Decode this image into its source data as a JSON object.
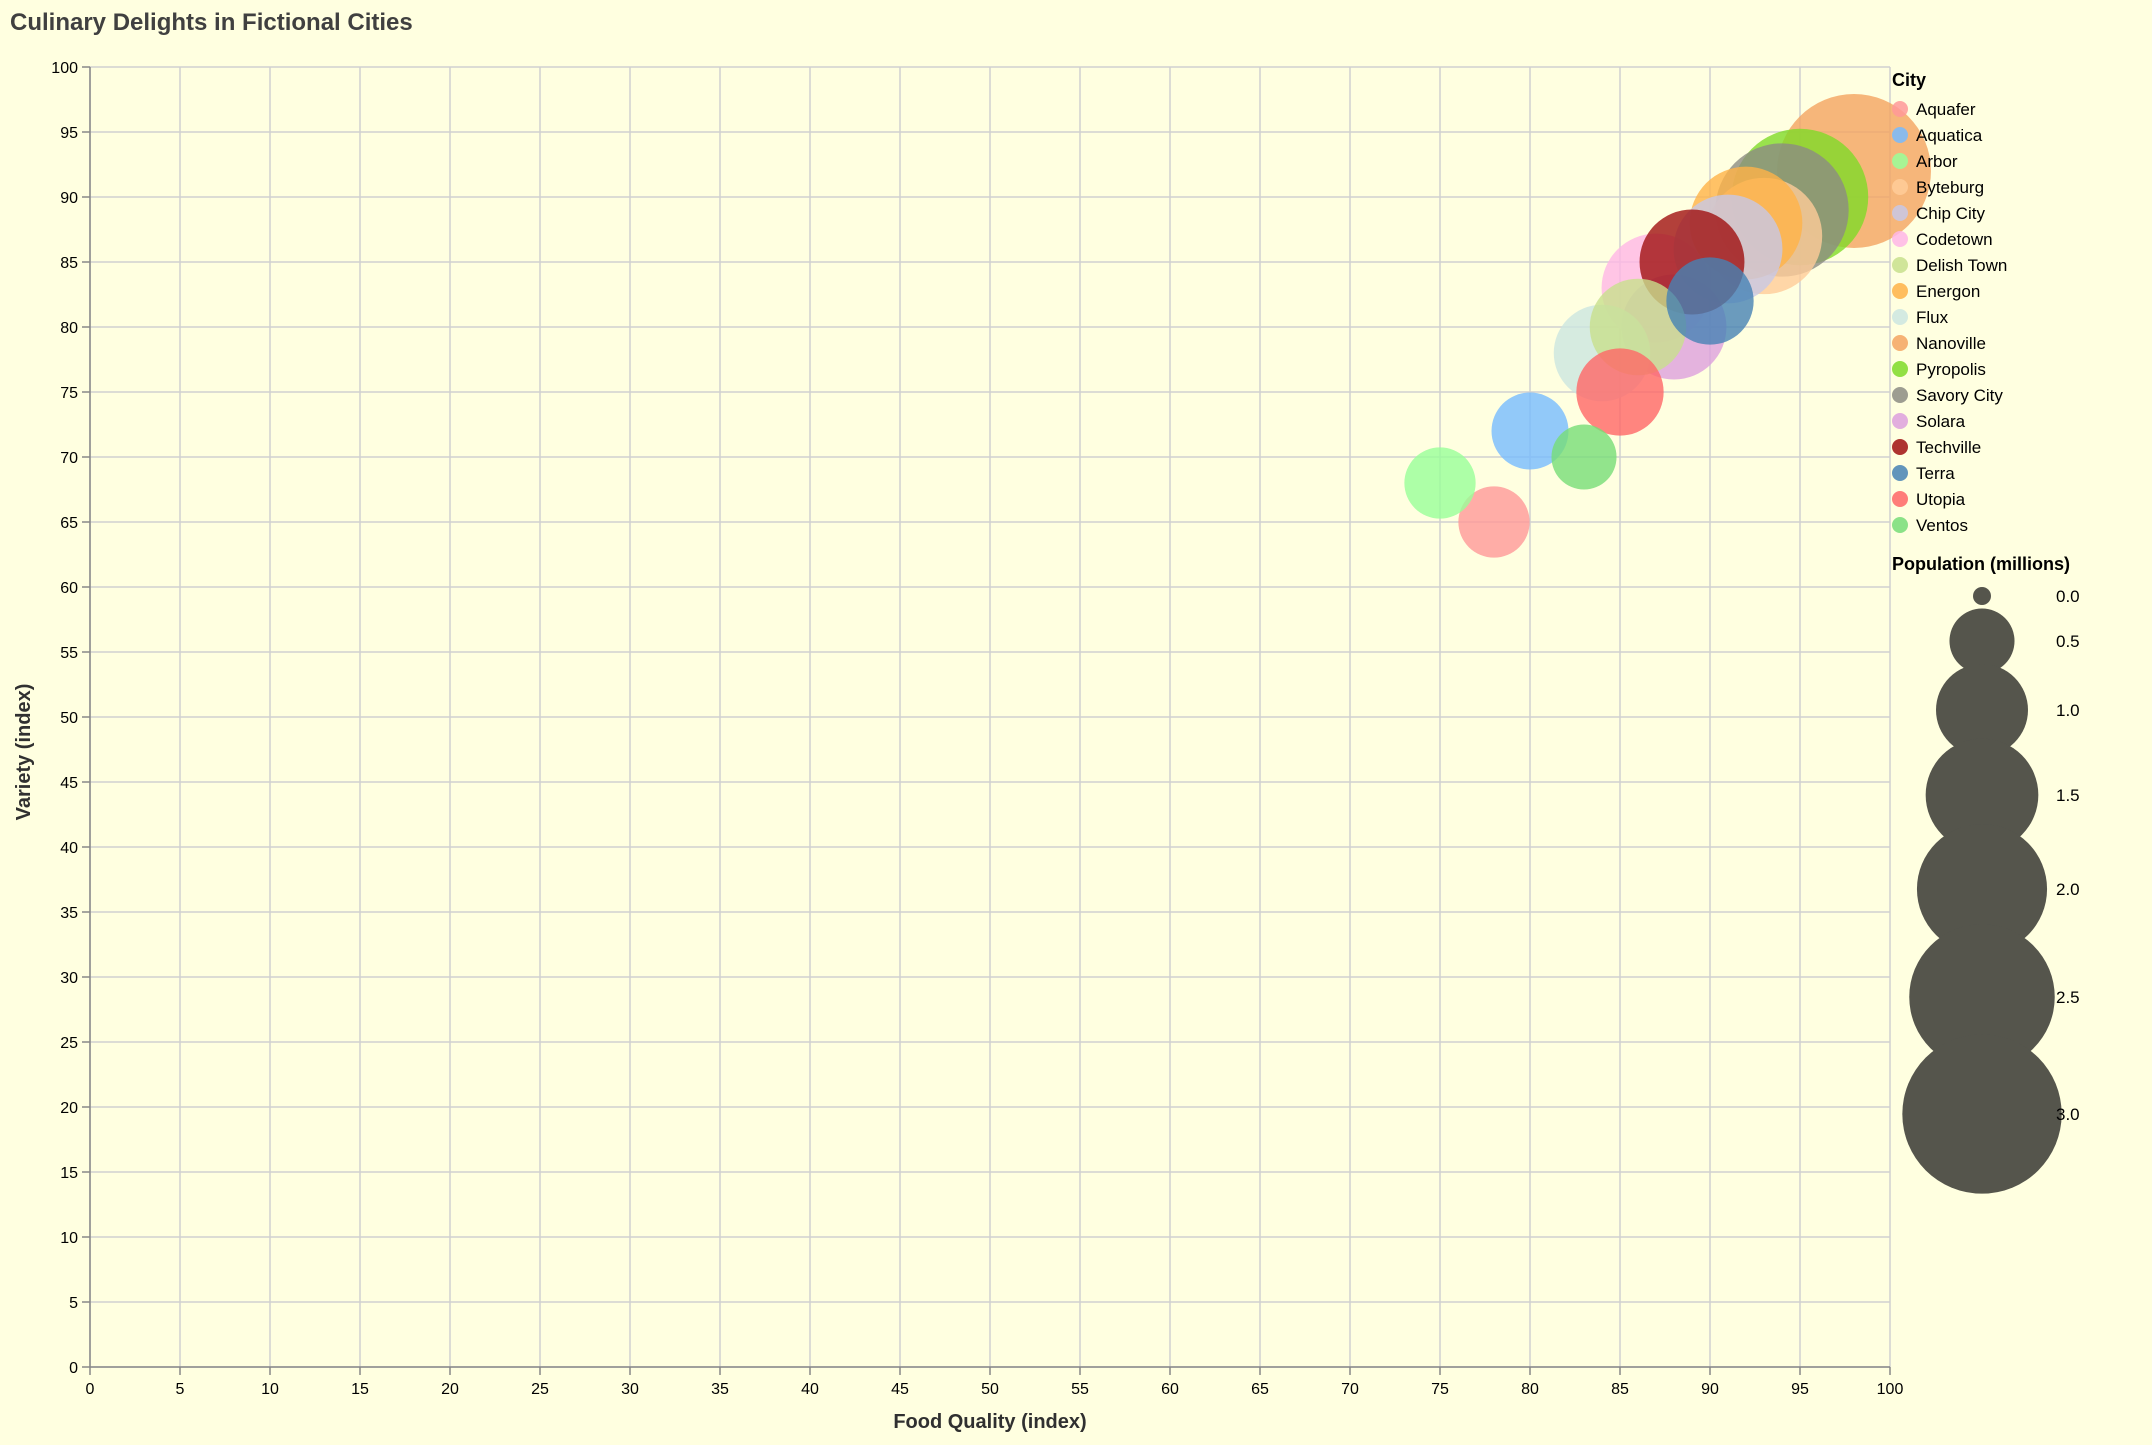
{
  "chart_data": {
    "type": "bubble",
    "title": "Culinary Delights in Fictional Cities",
    "xlabel": "Food Quality (index)",
    "ylabel": "Variety (index)",
    "xlim": [
      0,
      100
    ],
    "ylim": [
      0,
      100
    ],
    "x_ticks": [
      0,
      5,
      10,
      15,
      20,
      25,
      30,
      35,
      40,
      45,
      50,
      55,
      60,
      65,
      70,
      75,
      80,
      85,
      90,
      95,
      100
    ],
    "y_ticks": [
      0,
      5,
      10,
      15,
      20,
      25,
      30,
      35,
      40,
      45,
      50,
      55,
      60,
      65,
      70,
      75,
      80,
      85,
      90,
      95,
      100
    ],
    "grid": true,
    "legend_color_title": "City",
    "legend_size_title": "Population (millions)",
    "legend_size_values": [
      0.0,
      0.5,
      1.0,
      1.5,
      2.0,
      2.5,
      3.0
    ],
    "legend_size_labels": [
      "0.0",
      "0.5",
      "1.0",
      "1.5",
      "2.0",
      "2.5",
      "3.0"
    ],
    "size_legend_color": "#55554c",
    "points": [
      {
        "city": "Aquafer",
        "quality": 78,
        "variety": 65,
        "population": 0.6,
        "color": "#ff9999"
      },
      {
        "city": "Arbor",
        "quality": 75,
        "variety": 68,
        "population": 0.6,
        "color": "#99ff99"
      },
      {
        "city": "Ventos",
        "quality": 83,
        "variety": 70,
        "population": 0.5,
        "color": "#77dd77"
      },
      {
        "city": "Aquatica",
        "quality": 80,
        "variety": 72,
        "population": 0.7,
        "color": "#77bbff"
      },
      {
        "city": "Utopia",
        "quality": 85,
        "variety": 75,
        "population": 0.9,
        "color": "#ff6666"
      },
      {
        "city": "Flux",
        "quality": 84,
        "variety": 78,
        "population": 1.1,
        "color": "#cce6e0"
      },
      {
        "city": "Solara",
        "quality": 88,
        "variety": 80,
        "population": 1.3,
        "color": "#dda0dd"
      },
      {
        "city": "Terra",
        "quality": 90,
        "variety": 82,
        "population": 0.9,
        "color": "#4682b4"
      },
      {
        "city": "Codetown",
        "quality": 87,
        "variety": 83,
        "population": 1.4,
        "color": "#ffb6e6"
      },
      {
        "city": "Delish Town",
        "quality": 86,
        "variety": 80,
        "population": 1.1,
        "color": "#c8e08c"
      },
      {
        "city": "Techville",
        "quality": 89,
        "variety": 85,
        "population": 1.3,
        "color": "#a01010"
      },
      {
        "city": "Chip City",
        "quality": 91,
        "variety": 86,
        "population": 1.4,
        "color": "#c8c8e6"
      },
      {
        "city": "Energon",
        "quality": 92,
        "variety": 88,
        "population": 1.5,
        "color": "#ffb347"
      },
      {
        "city": "Byteburg",
        "quality": 93,
        "variety": 87,
        "population": 1.6,
        "color": "#ffcc99"
      },
      {
        "city": "Pyropolis",
        "quality": 95,
        "variety": 90,
        "population": 2.2,
        "color": "#7fdb28"
      },
      {
        "city": "Savory City",
        "quality": 94,
        "variety": 89,
        "population": 2.1,
        "color": "#8c8c82"
      },
      {
        "city": "Nanoville",
        "quality": 98,
        "variety": 92,
        "population": 2.8,
        "color": "#f4a460"
      }
    ],
    "legend_order": [
      "Aquafer",
      "Aquatica",
      "Arbor",
      "Byteburg",
      "Chip City",
      "Codetown",
      "Delish Town",
      "Energon",
      "Flux",
      "Nanoville",
      "Pyropolis",
      "Savory City",
      "Solara",
      "Techville",
      "Terra",
      "Utopia",
      "Ventos"
    ]
  }
}
